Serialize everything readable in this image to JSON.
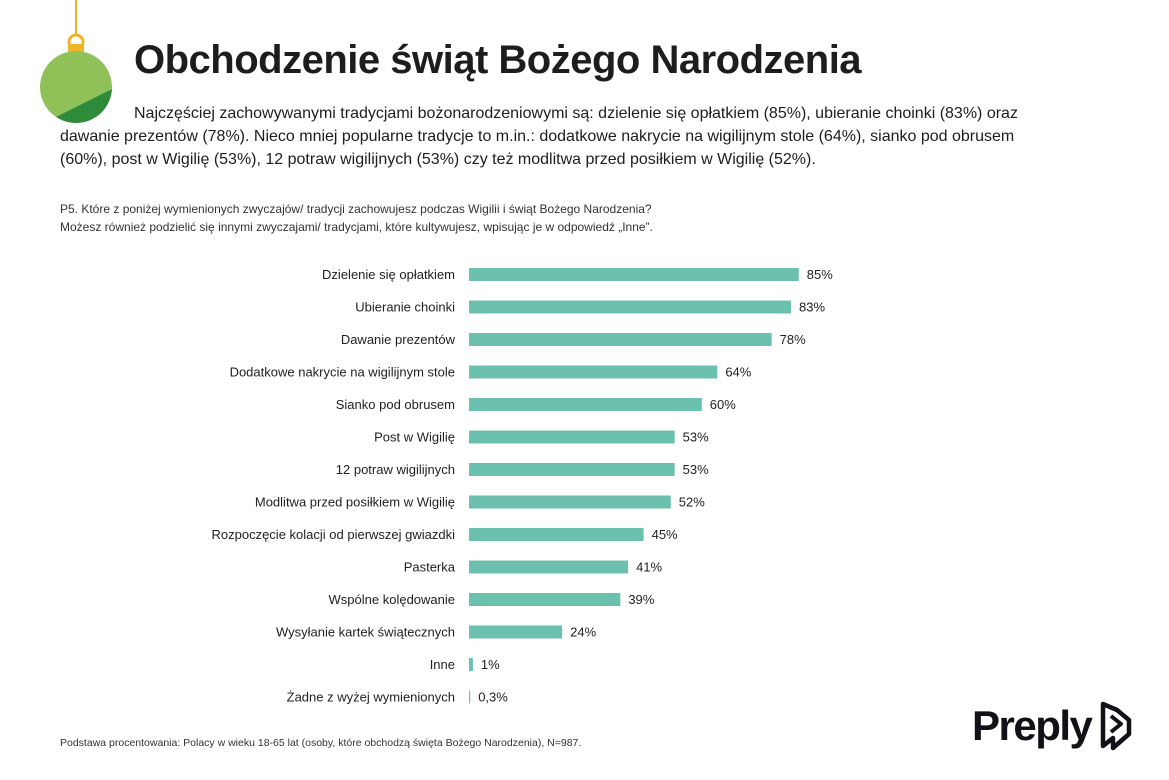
{
  "header": {
    "title": "Obchodzenie świąt Bożego Narodzenia",
    "intro": "Najczęściej zachowywanymi tradycjami bożonarodzeniowymi są: dzielenie się opłatkiem (85%), ubieranie choinki (83%) oraz dawanie prezentów (78%). Nieco mniej popularne tradycje to m.in.: dodatkowe nakrycie na wigilijnym stole (64%), sianko pod obrusem (60%), post w Wigilię (53%), 12 potraw wigilijnych (53%) czy też modlitwa przed posiłkiem w Wigilię (52%)."
  },
  "question": {
    "line1": "P5. Które z poniżej wymienionych zwyczajów/ tradycji zachowujesz podczas Wigilii i świąt Bożego Narodzenia?",
    "line2": "Możesz również podzielić się innymi zwyczajami/ tradycjami, które kultywujesz, wpisując je w odpowiedź „Inne”."
  },
  "footnote": "Podstawa procentowania: Polacy w wieku 18-65 lat (osoby, które obchodzą święta Bożego Narodzenia), N=987.",
  "logo": {
    "text": "Preply",
    "icon": "preply-logo-icon"
  },
  "decoration": {
    "icon": "christmas-ornament-icon",
    "ornament_color": "#8fc158",
    "ornament_shade": "#2e8b3a",
    "cap_color": "#f0b428"
  },
  "colors": {
    "bar": "#6cc0ae"
  },
  "chart_data": {
    "type": "bar",
    "orientation": "horizontal",
    "categories": [
      "Dzielenie się opłatkiem",
      "Ubieranie choinki",
      "Dawanie prezentów",
      "Dodatkowe nakrycie na wigilijnym stole",
      "Sianko pod obrusem",
      "Post w Wigilię",
      "12 potraw wigilijnych",
      "Modlitwa przed posiłkiem w Wigilię",
      "Rozpoczęcie kolacji od pierwszej gwiazdki",
      "Pasterka",
      "Wspólne kolędowanie",
      "Wysyłanie kartek świątecznych",
      "Inne",
      "Żadne z wyżej wymienionych"
    ],
    "values": [
      85,
      83,
      78,
      64,
      60,
      53,
      53,
      52,
      45,
      41,
      39,
      24,
      1,
      0.3
    ],
    "value_labels": [
      "85%",
      "83%",
      "78%",
      "64%",
      "60%",
      "53%",
      "53%",
      "52%",
      "45%",
      "41%",
      "39%",
      "24%",
      "1%",
      "0,3%"
    ],
    "xlim": [
      0,
      100
    ],
    "grid": false,
    "legend": "none"
  }
}
